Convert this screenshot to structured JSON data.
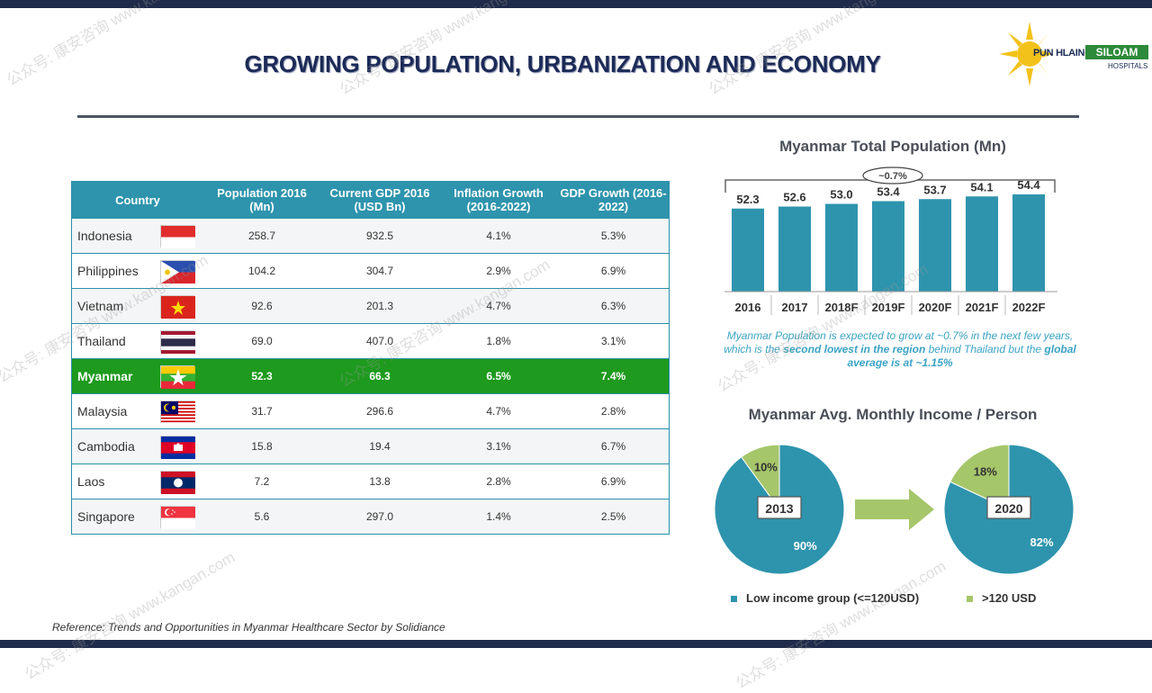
{
  "slide": {
    "title": "GROWING POPULATION, URBANIZATION AND ECONOMY",
    "reference": "Reference: Trends and Opportunities in Myanmar Healthcare Sector by Solidiance"
  },
  "logo": {
    "name": "PUN HLAING",
    "brand": "SILOAM",
    "sub": "HOSPITALS",
    "icon": "sun-icon"
  },
  "watermark": {
    "text": "公众号: 康安咨询 www.kangan.com"
  },
  "table": {
    "headers": [
      "Country",
      "Population 2016 (Mn)",
      "Current GDP 2016 (USD Bn)",
      "Inflation Growth (2016-2022)",
      "GDP Growth (2016-2022)"
    ],
    "rows": [
      {
        "country": "Indonesia",
        "flag": "indonesia-flag",
        "population": "258.7",
        "gdp": "932.5",
        "inflation": "4.1%",
        "gdp_growth": "5.3%"
      },
      {
        "country": "Philippines",
        "flag": "philippines-flag",
        "population": "104.2",
        "gdp": "304.7",
        "inflation": "2.9%",
        "gdp_growth": "6.9%"
      },
      {
        "country": "Vietnam",
        "flag": "vietnam-flag",
        "population": "92.6",
        "gdp": "201.3",
        "inflation": "4.7%",
        "gdp_growth": "6.3%"
      },
      {
        "country": "Thailand",
        "flag": "thailand-flag",
        "population": "69.0",
        "gdp": "407.0",
        "inflation": "1.8%",
        "gdp_growth": "3.1%"
      },
      {
        "country": "Myanmar",
        "flag": "myanmar-flag",
        "population": "52.3",
        "gdp": "66.3",
        "inflation": "6.5%",
        "gdp_growth": "7.4%",
        "highlight": true
      },
      {
        "country": "Malaysia",
        "flag": "malaysia-flag",
        "population": "31.7",
        "gdp": "296.6",
        "inflation": "4.7%",
        "gdp_growth": "2.8%"
      },
      {
        "country": "Cambodia",
        "flag": "cambodia-flag",
        "population": "15.8",
        "gdp": "19.4",
        "inflation": "3.1%",
        "gdp_growth": "6.7%"
      },
      {
        "country": "Laos",
        "flag": "laos-flag",
        "population": "7.2",
        "gdp": "13.8",
        "inflation": "2.8%",
        "gdp_growth": "6.9%"
      },
      {
        "country": "Singapore",
        "flag": "singapore-flag",
        "population": "5.6",
        "gdp": "297.0",
        "inflation": "1.4%",
        "gdp_growth": "2.5%"
      }
    ]
  },
  "colors": {
    "bar": "#2e94ad",
    "low_income": "#2e94ad",
    "high_income": "#a6c66a",
    "highlight_row": "#1e9a1e",
    "arrow": "#a6c66a"
  },
  "note": {
    "p1": "Myanmar Population is expected to grow at ~0.7% in the next few years, which is the ",
    "b1": "second lowest in the region",
    "p2": " behind Thailand but the ",
    "b2": "global average is at ~1.15%"
  },
  "chart_data": [
    {
      "type": "bar",
      "title": "Myanmar Total Population (Mn)",
      "categories": [
        "2016",
        "2017",
        "2018F",
        "2019F",
        "2020F",
        "2021F",
        "2022F"
      ],
      "values": [
        52.3,
        52.6,
        53.0,
        53.4,
        53.7,
        54.1,
        54.4
      ],
      "value_labels": [
        "52.3",
        "52.6",
        "53.0",
        "53.4",
        "53.7",
        "54.1",
        "54.4"
      ],
      "annotation": "~0.7%",
      "grid": false
    },
    {
      "type": "pie",
      "title": "Myanmar Avg. Monthly Income / Person",
      "legend": [
        "Low income group (<=120USD)",
        ">120 USD"
      ],
      "legend_position": "bottom",
      "pies": [
        {
          "label": "2013",
          "values": [
            90,
            10
          ],
          "value_labels": [
            "90%",
            "10%"
          ]
        },
        {
          "label": "2020",
          "values": [
            82,
            18
          ],
          "value_labels": [
            "82%",
            "18%"
          ]
        }
      ]
    }
  ]
}
